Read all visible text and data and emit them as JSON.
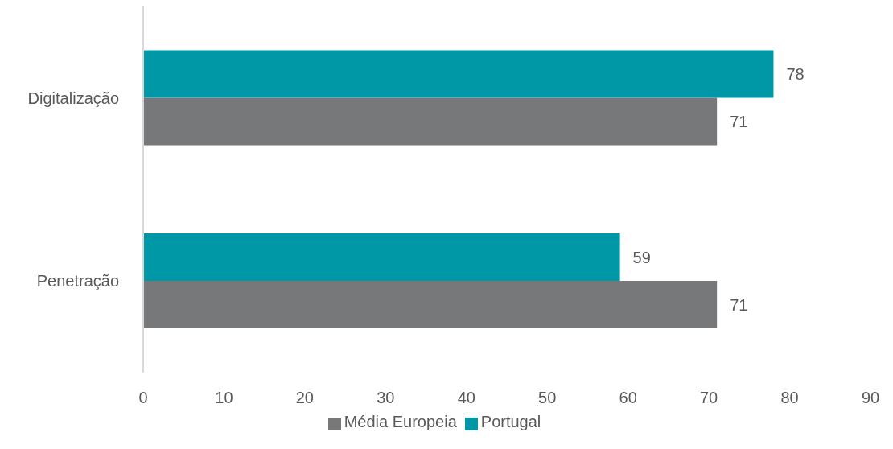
{
  "chart_data": {
    "type": "bar",
    "orientation": "horizontal",
    "categories": [
      "Digitalização",
      "Penetração"
    ],
    "series": [
      {
        "name": "Portugal",
        "color": "#0097a7",
        "values": [
          78,
          59
        ]
      },
      {
        "name": "Média Europeia",
        "color": "#76787a",
        "values": [
          71,
          71
        ]
      }
    ],
    "xlim": [
      0,
      90
    ],
    "xticks": [
      0,
      10,
      20,
      30,
      40,
      50,
      60,
      70,
      80,
      90
    ],
    "grid": false,
    "legend": "bottom",
    "data_labels": true
  }
}
